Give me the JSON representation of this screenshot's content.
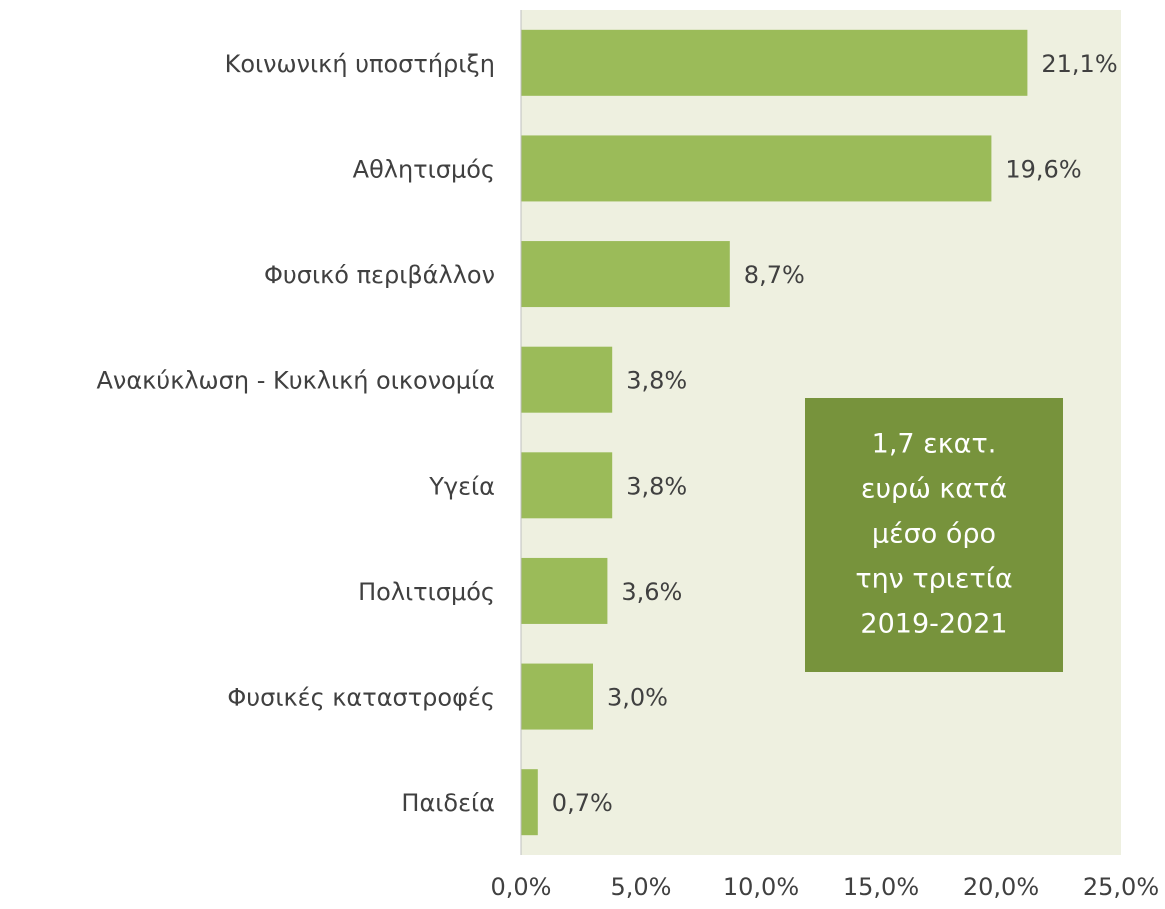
{
  "chart_data": {
    "type": "hbar",
    "categories": [
      "Κοινωνική υποστήριξη",
      "Αθλητισμός",
      "Φυσικό περιβάλλον",
      "Ανακύκλωση - Κυκλική οικονομία",
      "Υγεία",
      "Πολιτισμός",
      "Φυσικές καταστροφές",
      "Παιδεία"
    ],
    "values": [
      21.1,
      19.6,
      8.7,
      3.8,
      3.8,
      3.6,
      3.0,
      0.7
    ],
    "value_labels": [
      "21,1%",
      "19,6%",
      "8,7%",
      "3,8%",
      "3,8%",
      "3,6%",
      "3,0%",
      "0,7%"
    ],
    "color": "#9bbb59",
    "plot_background": "#eef0e0",
    "xlim": [
      0,
      25
    ],
    "xticks": [
      {
        "value": 0,
        "label": "0,0%"
      },
      {
        "value": 5,
        "label": "5,0%"
      },
      {
        "value": 10,
        "label": "10,0%"
      },
      {
        "value": 15,
        "label": "15,0%"
      },
      {
        "value": 20,
        "label": "20,0%"
      },
      {
        "value": 25,
        "label": "25,0%"
      }
    ],
    "grid": false,
    "annotation": {
      "lines": [
        "1,7 εκατ.",
        "ευρώ  κατά",
        "μέσο όρο",
        "την τριετία",
        "2019-2021"
      ],
      "color": "#77933c"
    }
  }
}
